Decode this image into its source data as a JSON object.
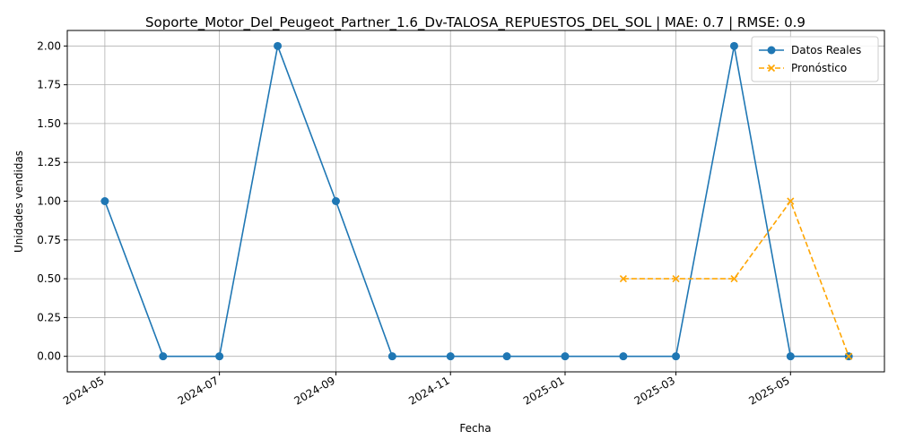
{
  "chart_data": {
    "type": "line",
    "title": "Soporte_Motor_Del_Peugeot_Partner_1.6_Dv-TALOSA_REPUESTOS_DEL_SOL | MAE: 0.7 | RMSE: 0.9",
    "xlabel": "Fecha",
    "ylabel": "Unidades vendidas",
    "x_ticks": [
      "2024-05",
      "2024-07",
      "2024-09",
      "2024-11",
      "2025-01",
      "2025-03",
      "2025-05"
    ],
    "y_ticks": [
      "0.00",
      "0.25",
      "0.50",
      "0.75",
      "1.00",
      "1.25",
      "1.50",
      "1.75",
      "2.00"
    ],
    "ylim": [
      -0.1,
      2.1
    ],
    "xlim": [
      "2024-04-11",
      "2025-06-20"
    ],
    "grid": true,
    "legend_position": "top-right",
    "series": [
      {
        "name": "Datos Reales",
        "color": "#1f77b4",
        "style": "solid",
        "marker": "circle",
        "x": [
          "2024-05-01",
          "2024-06-01",
          "2024-07-01",
          "2024-08-01",
          "2024-09-01",
          "2024-10-01",
          "2024-11-01",
          "2024-12-01",
          "2025-01-01",
          "2025-02-01",
          "2025-03-01",
          "2025-04-01",
          "2025-05-01",
          "2025-06-01"
        ],
        "values": [
          1,
          0,
          0,
          2,
          1,
          0,
          0,
          0,
          0,
          0,
          0,
          2,
          0,
          0
        ]
      },
      {
        "name": "Pronóstico",
        "color": "#ffa500",
        "style": "dashed",
        "marker": "x",
        "x": [
          "2025-02-01",
          "2025-03-01",
          "2025-04-01",
          "2025-05-01",
          "2025-06-01"
        ],
        "values": [
          0.5,
          0.5,
          0.5,
          1.0,
          0.0
        ]
      }
    ]
  }
}
